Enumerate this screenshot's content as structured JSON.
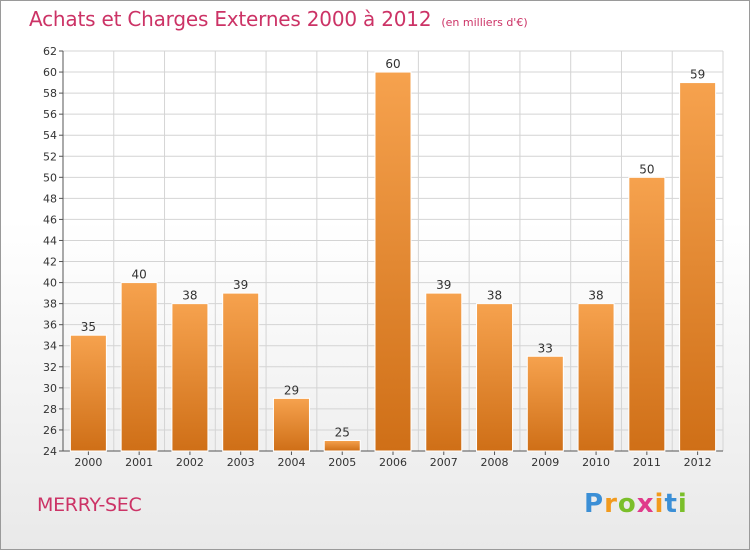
{
  "title": "Achats et Charges Externes 2000 à 2012",
  "subtitle": "(en milliers d'€)",
  "region": "MERRY-SEC",
  "brand": "Proxiti",
  "colors": {
    "title": "#cc3366",
    "bar_light": "#f6a24e",
    "bar_dark": "#cf6f17",
    "grid": "#d4d4d4"
  },
  "chart_data": {
    "type": "bar",
    "title": "Achats et Charges Externes 2000 à 2012",
    "subtitle": "(en milliers d'€)",
    "xlabel": "",
    "ylabel": "",
    "categories": [
      "2000",
      "2001",
      "2002",
      "2003",
      "2004",
      "2005",
      "2006",
      "2007",
      "2008",
      "2009",
      "2010",
      "2011",
      "2012"
    ],
    "values": [
      35,
      40,
      38,
      39,
      29,
      25,
      60,
      39,
      38,
      33,
      38,
      50,
      59
    ],
    "ylim": [
      24,
      62
    ],
    "ytick_step": 2,
    "grid": true,
    "legend": "none"
  }
}
